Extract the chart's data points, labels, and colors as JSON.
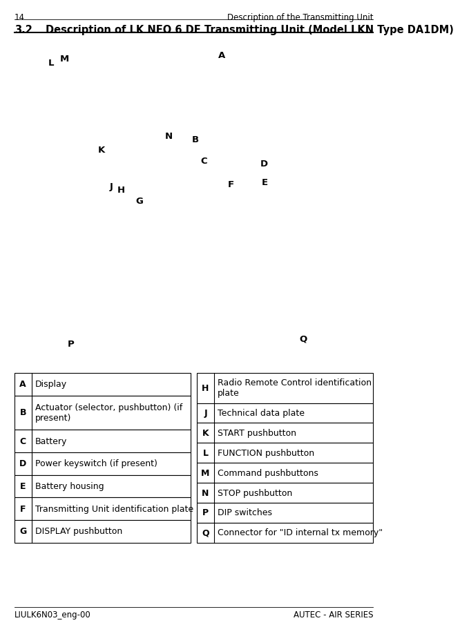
{
  "page_number": "14",
  "header_right": "Description of the Transmitting Unit",
  "section_title": "3.2",
  "section_title_desc": "Description of LK NEO 6 DF Transmitting Unit (Model LKN Type DA1DM)",
  "footer_left": "LIULK6N03_eng-00",
  "footer_right": "AUTEC - AIR SERIES",
  "table_left": [
    {
      "key": "A",
      "value": "Display",
      "tall": false
    },
    {
      "key": "B",
      "value": "Actuator (selector, pushbutton) (if\npresent)",
      "tall": true
    },
    {
      "key": "C",
      "value": "Battery",
      "tall": false
    },
    {
      "key": "D",
      "value": "Power keyswitch (if present)",
      "tall": false
    },
    {
      "key": "E",
      "value": "Battery housing",
      "tall": false
    },
    {
      "key": "F",
      "value": "Transmitting Unit identification plate",
      "tall": false
    },
    {
      "key": "G",
      "value": "DISPLAY pushbutton",
      "tall": false
    }
  ],
  "table_right": [
    {
      "key": "H",
      "value": "Radio Remote Control identification\nplate",
      "tall": true
    },
    {
      "key": "J",
      "value": "Technical data plate",
      "tall": false
    },
    {
      "key": "K",
      "value": "START pushbutton",
      "tall": false
    },
    {
      "key": "L",
      "value": "FUNCTION pushbutton",
      "tall": false
    },
    {
      "key": "M",
      "value": "Command pushbuttons",
      "tall": false
    },
    {
      "key": "N",
      "value": "STOP pushbutton",
      "tall": false
    },
    {
      "key": "P",
      "value": "DIP switches",
      "tall": false
    },
    {
      "key": "Q",
      "value": "Connector for \"ID internal tx memory\"",
      "tall": false
    }
  ],
  "bg_color": "#ffffff",
  "text_color": "#000000",
  "table_border_color": "#000000"
}
